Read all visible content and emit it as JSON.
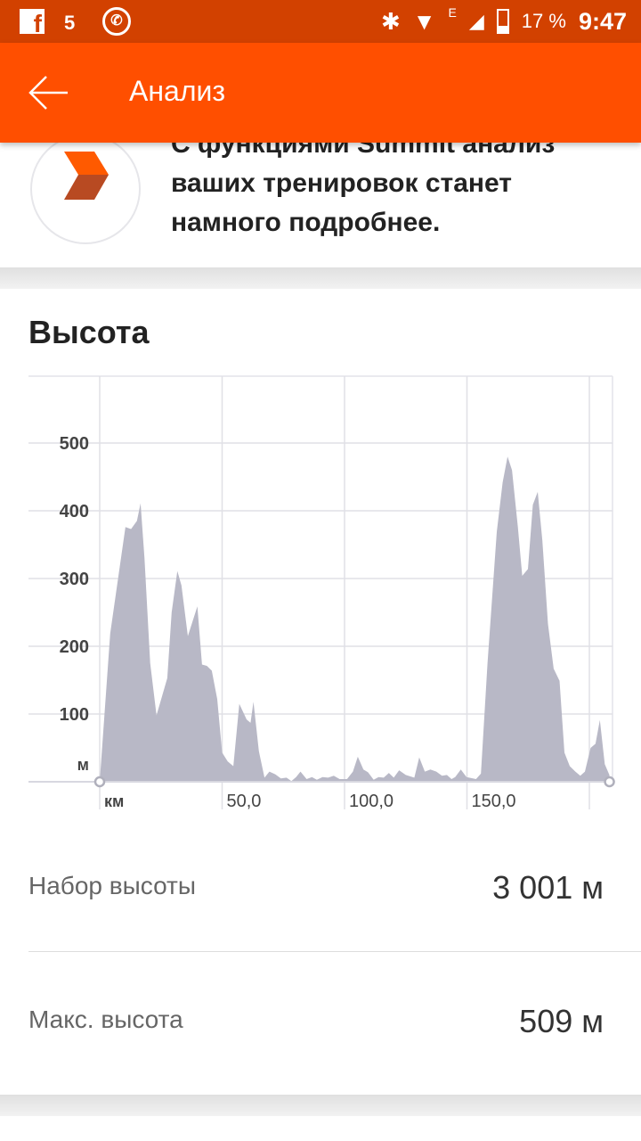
{
  "status_bar": {
    "battery": "17 %",
    "time": "9:47",
    "network": "E",
    "icons": [
      "facebook-icon",
      "html5-icon",
      "viber-icon",
      "bluetooth-icon",
      "wifi-icon",
      "signal-icon",
      "battery-charging-icon"
    ]
  },
  "app_bar": {
    "title": "Анализ",
    "back_icon": "arrow-left-icon"
  },
  "promo": {
    "text": "С функциями Summit анализ ваших тренировок станет намного подробнее."
  },
  "section": {
    "title": "Высота"
  },
  "chart_data": {
    "type": "area",
    "title": "Высота",
    "xlabel": "км",
    "ylabel": "м",
    "xlim": [
      0,
      209
    ],
    "ylim": [
      0,
      600
    ],
    "x_ticks": [
      "км",
      "50,0",
      "100,0",
      "150,0"
    ],
    "y_ticks": [
      "500",
      "400",
      "300",
      "200",
      "100",
      "м"
    ],
    "grid": true,
    "color": "#b8b8c6",
    "points": [
      [
        0,
        0
      ],
      [
        4.3,
        219
      ],
      [
        10.5,
        376
      ],
      [
        12.8,
        373
      ],
      [
        15.2,
        385
      ],
      [
        16.7,
        411
      ],
      [
        18.3,
        330
      ],
      [
        20.6,
        175
      ],
      [
        23.2,
        98
      ],
      [
        27.6,
        153
      ],
      [
        29.4,
        250
      ],
      [
        31.7,
        311
      ],
      [
        33.4,
        290
      ],
      [
        36,
        215
      ],
      [
        39.9,
        259
      ],
      [
        41.8,
        173
      ],
      [
        43.8,
        171
      ],
      [
        45.8,
        164
      ],
      [
        48,
        122
      ],
      [
        50,
        43
      ],
      [
        52.3,
        30
      ],
      [
        54.6,
        23
      ],
      [
        57,
        115
      ],
      [
        60,
        92
      ],
      [
        61.6,
        87
      ],
      [
        62.8,
        118
      ],
      [
        65,
        45
      ],
      [
        67.3,
        6
      ],
      [
        69.3,
        15
      ],
      [
        71.7,
        11
      ],
      [
        74,
        5
      ],
      [
        76.3,
        6
      ],
      [
        78.3,
        1
      ],
      [
        80.2,
        7
      ],
      [
        82,
        15
      ],
      [
        84.5,
        4
      ],
      [
        86.7,
        7
      ],
      [
        88.7,
        3
      ],
      [
        91,
        7
      ],
      [
        93.3,
        6
      ],
      [
        95.6,
        9
      ],
      [
        98,
        4
      ],
      [
        101,
        4
      ],
      [
        103.4,
        15
      ],
      [
        105.4,
        37
      ],
      [
        107.7,
        18
      ],
      [
        109.6,
        14
      ],
      [
        111.9,
        3
      ],
      [
        113.9,
        7
      ],
      [
        116,
        6
      ],
      [
        118.1,
        13
      ],
      [
        120.1,
        6
      ],
      [
        122.3,
        17
      ],
      [
        125,
        10
      ],
      [
        128.5,
        6
      ],
      [
        130.5,
        36
      ],
      [
        132.8,
        15
      ],
      [
        135.1,
        18
      ],
      [
        137.5,
        15
      ],
      [
        139.8,
        9
      ],
      [
        141.8,
        10
      ],
      [
        143.7,
        4
      ],
      [
        145.2,
        7
      ],
      [
        147.5,
        18
      ],
      [
        149.8,
        7
      ],
      [
        153.7,
        4
      ],
      [
        155.7,
        12
      ],
      [
        158.4,
        175
      ],
      [
        162.2,
        369
      ],
      [
        164.6,
        442
      ],
      [
        166.6,
        480
      ],
      [
        168.4,
        460
      ],
      [
        170.8,
        376
      ],
      [
        172.6,
        304
      ],
      [
        174.9,
        314
      ],
      [
        176.9,
        409
      ],
      [
        178.9,
        428
      ],
      [
        180.8,
        356
      ],
      [
        183.1,
        233
      ],
      [
        185.4,
        167
      ],
      [
        187.8,
        149
      ],
      [
        189.8,
        43
      ],
      [
        192,
        23
      ],
      [
        194.3,
        15
      ],
      [
        196.3,
        9
      ],
      [
        198.2,
        15
      ],
      [
        200.5,
        50
      ],
      [
        202.5,
        56
      ],
      [
        204.3,
        91
      ],
      [
        206.3,
        26
      ],
      [
        208.2,
        10
      ]
    ]
  },
  "stats": [
    {
      "label": "Набор высоты",
      "value": "3 001 м"
    },
    {
      "label": "Макс. высота",
      "value": "509 м"
    }
  ]
}
